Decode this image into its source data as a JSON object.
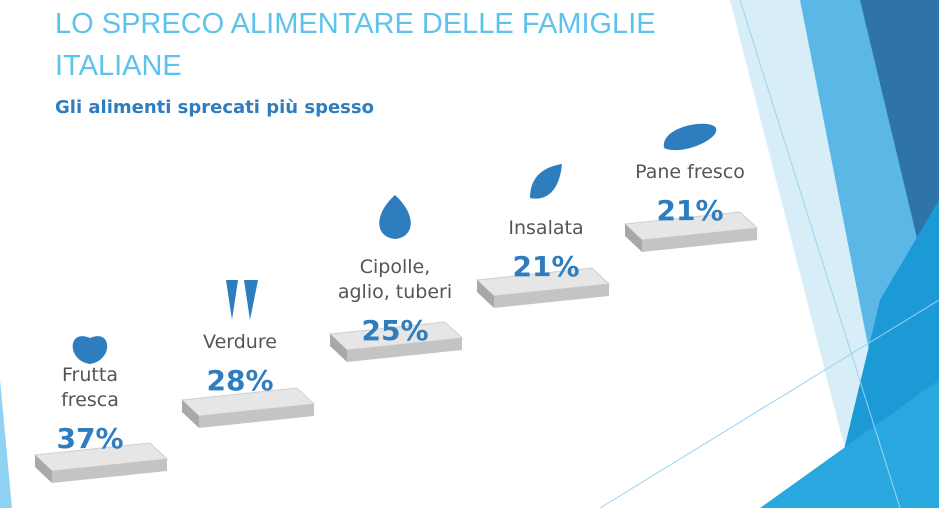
{
  "title_lines": [
    "LO SPRECO ALIMENTARE DELLE FAMIGLIE",
    "ITALIANE"
  ],
  "subtitle": "Gli alimenti sprecati più spesso",
  "items": [
    {
      "label_lines": [
        "Frutta",
        "fresca"
      ],
      "value": "37%"
    },
    {
      "label_lines": [
        "Verdure"
      ],
      "value": "28%"
    },
    {
      "label_lines": [
        "Cipolle,",
        "aglio, tuberi"
      ],
      "value": "25%"
    },
    {
      "label_lines": [
        "Insalata"
      ],
      "value": "21%"
    },
    {
      "label_lines": [
        "Pane fresco"
      ],
      "value": "21%"
    }
  ]
}
